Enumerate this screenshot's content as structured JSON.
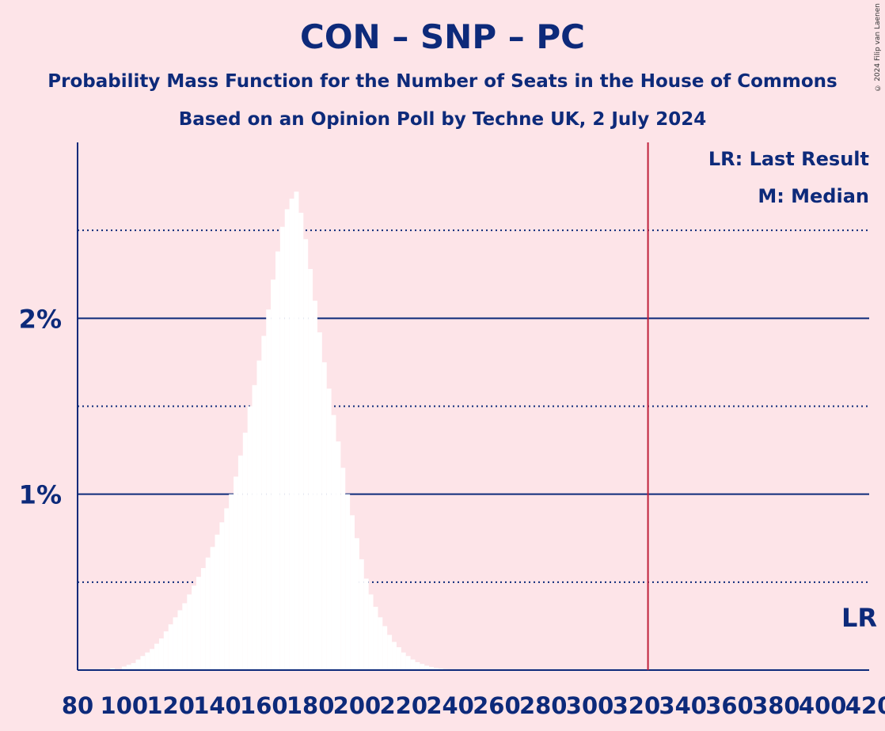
{
  "colors": {
    "background": "#fde4e8",
    "text": "#0d2a7a",
    "bars": "#ffffff",
    "last_result_line": "#c0203a"
  },
  "copyright": "© 2024 Filip van Laenen",
  "chart_data": {
    "type": "bar",
    "title": "CON – SNP – PC",
    "subtitle": "Probability Mass Function for the Number of Seats in the House of Commons",
    "subtitle2": "Based on an Opinion Poll by Techne UK, 2 July 2024",
    "xlabel": "",
    "ylabel": "",
    "xlim": [
      80,
      420
    ],
    "ylim": [
      0,
      3
    ],
    "x_ticks": [
      80,
      100,
      120,
      140,
      160,
      180,
      200,
      220,
      240,
      260,
      280,
      300,
      320,
      340,
      360,
      380,
      400,
      420
    ],
    "x_tick_labels": [
      "80",
      "100",
      "120",
      "140",
      "160",
      "180",
      "200",
      "220",
      "240",
      "260",
      "280",
      "300",
      "320",
      "340",
      "360",
      "380",
      "400",
      "420"
    ],
    "y_ticks_major": [
      1,
      2
    ],
    "y_tick_labels": [
      "1%",
      "2%"
    ],
    "y_ticks_minor": [
      0.5,
      1.5,
      2.5
    ],
    "grid": true,
    "last_result": 325,
    "median": 175,
    "legend": {
      "placement": "top-right",
      "entries": [
        "LR: Last Result",
        "M: Median"
      ]
    },
    "last_result_label": "LR",
    "x": [
      90,
      95,
      100,
      102,
      104,
      106,
      108,
      110,
      112,
      114,
      116,
      118,
      120,
      122,
      124,
      126,
      128,
      130,
      132,
      134,
      136,
      138,
      140,
      142,
      144,
      146,
      148,
      150,
      152,
      154,
      156,
      158,
      160,
      162,
      164,
      166,
      168,
      170,
      172,
      174,
      176,
      178,
      180,
      182,
      184,
      186,
      188,
      190,
      192,
      194,
      196,
      198,
      200,
      202,
      204,
      206,
      208,
      210,
      212,
      214,
      216,
      218,
      220,
      222,
      224,
      226,
      228,
      230,
      232,
      234,
      236,
      238,
      240,
      242,
      244,
      246,
      248,
      250
    ],
    "values": [
      0.005,
      0.01,
      0.02,
      0.03,
      0.04,
      0.06,
      0.08,
      0.1,
      0.12,
      0.15,
      0.18,
      0.22,
      0.26,
      0.3,
      0.34,
      0.38,
      0.43,
      0.48,
      0.53,
      0.58,
      0.64,
      0.7,
      0.77,
      0.84,
      0.92,
      1.0,
      1.1,
      1.22,
      1.35,
      1.5,
      1.62,
      1.76,
      1.9,
      2.05,
      2.22,
      2.38,
      2.52,
      2.62,
      2.68,
      2.72,
      2.6,
      2.45,
      2.28,
      2.1,
      1.92,
      1.75,
      1.6,
      1.45,
      1.3,
      1.15,
      1.0,
      0.88,
      0.75,
      0.63,
      0.52,
      0.43,
      0.36,
      0.3,
      0.25,
      0.2,
      0.16,
      0.13,
      0.1,
      0.08,
      0.06,
      0.045,
      0.035,
      0.025,
      0.018,
      0.012,
      0.008,
      0.005,
      0.004,
      0.003,
      0.002,
      0.0015,
      0.001,
      0.0005
    ]
  }
}
